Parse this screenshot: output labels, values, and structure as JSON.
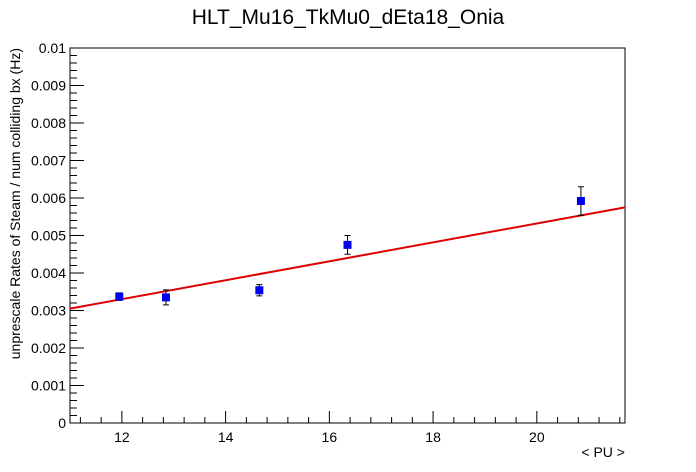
{
  "chart_data": {
    "type": "scatter",
    "title": "HLT_Mu16_TkMu0_dEta18_Onia",
    "xlabel": "< PU >",
    "ylabel": "unprescale Rates of Steam / num colliding bx (Hz)",
    "xlim": [
      11.0,
      21.7
    ],
    "ylim": [
      0,
      0.01
    ],
    "x_ticks": [
      12,
      14,
      16,
      18,
      20
    ],
    "y_ticks": [
      0,
      0.001,
      0.002,
      0.003,
      0.004,
      0.005,
      0.006,
      0.007,
      0.008,
      0.009,
      0.01
    ],
    "x_tick_labels": [
      "12",
      "14",
      "16",
      "18",
      "20"
    ],
    "y_tick_labels": [
      "0",
      "0.001",
      "0.002",
      "0.003",
      "0.004",
      "0.005",
      "0.006",
      "0.007",
      "0.008",
      "0.009",
      "0.01"
    ],
    "grid": false,
    "legend": "none",
    "series": [
      {
        "marker_color": "#0000ee",
        "points": [
          {
            "x": 11.95,
            "y": 0.00337,
            "err": 0.0001
          },
          {
            "x": 12.85,
            "y": 0.00335,
            "err": 0.0002
          },
          {
            "x": 14.65,
            "y": 0.00354,
            "err": 0.00015
          },
          {
            "x": 16.35,
            "y": 0.00475,
            "err": 0.00025
          },
          {
            "x": 20.85,
            "y": 0.00592,
            "err": 0.00038
          }
        ]
      }
    ],
    "fit": {
      "color": "#dd0000",
      "points": [
        {
          "x": 11.0,
          "y": 0.00305
        },
        {
          "x": 21.7,
          "y": 0.00575
        }
      ]
    }
  }
}
